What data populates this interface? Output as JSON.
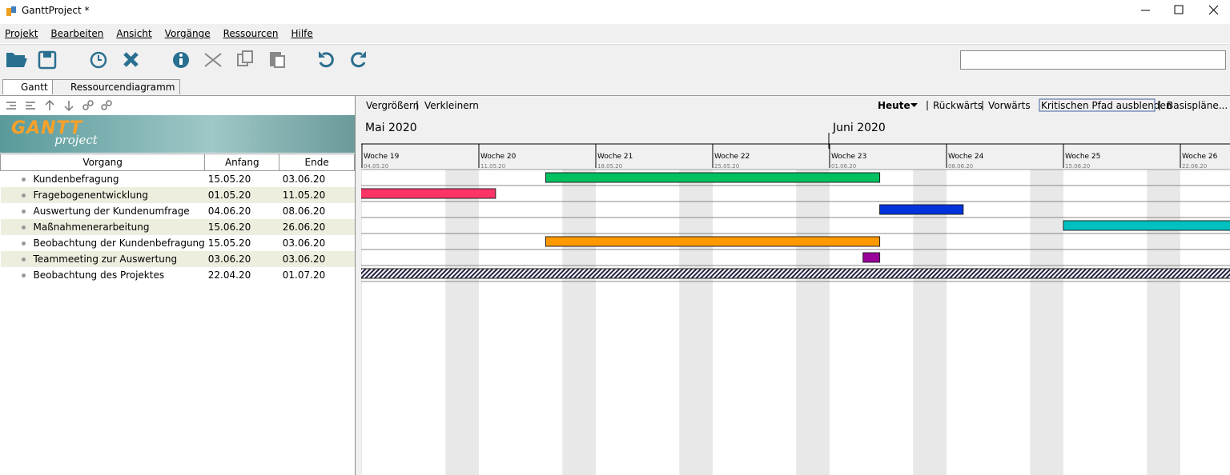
{
  "window": {
    "title": "GanttProject *"
  },
  "menu": [
    "Projekt",
    "Bearbeiten",
    "Ansicht",
    "Vorgänge",
    "Ressourcen",
    "Hilfe"
  ],
  "tabs": [
    "Gantt",
    "Ressourcendiagramm"
  ],
  "logo": {
    "title": "GANTT",
    "subtitle": "project"
  },
  "chart_toolbar": {
    "zoom_in": "Vergrößern",
    "zoom_out": "Verkleinern",
    "today": "Heute",
    "back": "Rückwärts",
    "forward": "Vorwärts",
    "critical_path": "Kritischen Pfad ausblenden",
    "baselines": "Basispläne..."
  },
  "timeline": {
    "months": [
      "Mai 2020",
      "Juni 2020"
    ],
    "weeks": [
      {
        "label": "Woche 19",
        "date": "04.05.20"
      },
      {
        "label": "Woche 20",
        "date": "11.05.20"
      },
      {
        "label": "Woche 21",
        "date": "18.05.20"
      },
      {
        "label": "Woche 22",
        "date": "25.05.20"
      },
      {
        "label": "Woche 23",
        "date": "01.06.20"
      },
      {
        "label": "Woche 24",
        "date": "08.06.20"
      },
      {
        "label": "Woche 25",
        "date": "15.06.20"
      },
      {
        "label": "Woche 26",
        "date": "22.06.20"
      }
    ]
  },
  "table": {
    "headers": [
      "Vorgang",
      "Anfang",
      "Ende"
    ],
    "rows": [
      {
        "name": "Kundenbefragung",
        "start": "15.05.20",
        "end": "03.06.20",
        "color": "#00c060"
      },
      {
        "name": "Fragebogenentwicklung",
        "start": "01.05.20",
        "end": "11.05.20",
        "color": "#ff3366"
      },
      {
        "name": "Auswertung der Kundenumfrage",
        "start": "04.06.20",
        "end": "08.06.20",
        "color": "#0033dd"
      },
      {
        "name": "Maßnahmenerarbeitung",
        "start": "15.06.20",
        "end": "26.06.20",
        "color": "#00c0c0"
      },
      {
        "name": "Beobachtung der Kundenbefragung",
        "start": "15.05.20",
        "end": "03.06.20",
        "color": "#ff9900"
      },
      {
        "name": "Teammeeting zur Auswertung",
        "start": "03.06.20",
        "end": "03.06.20",
        "color": "#990099"
      },
      {
        "name": "Beobachtung des Projektes",
        "start": "22.04.20",
        "end": "01.07.20",
        "color": "#222244"
      }
    ]
  }
}
